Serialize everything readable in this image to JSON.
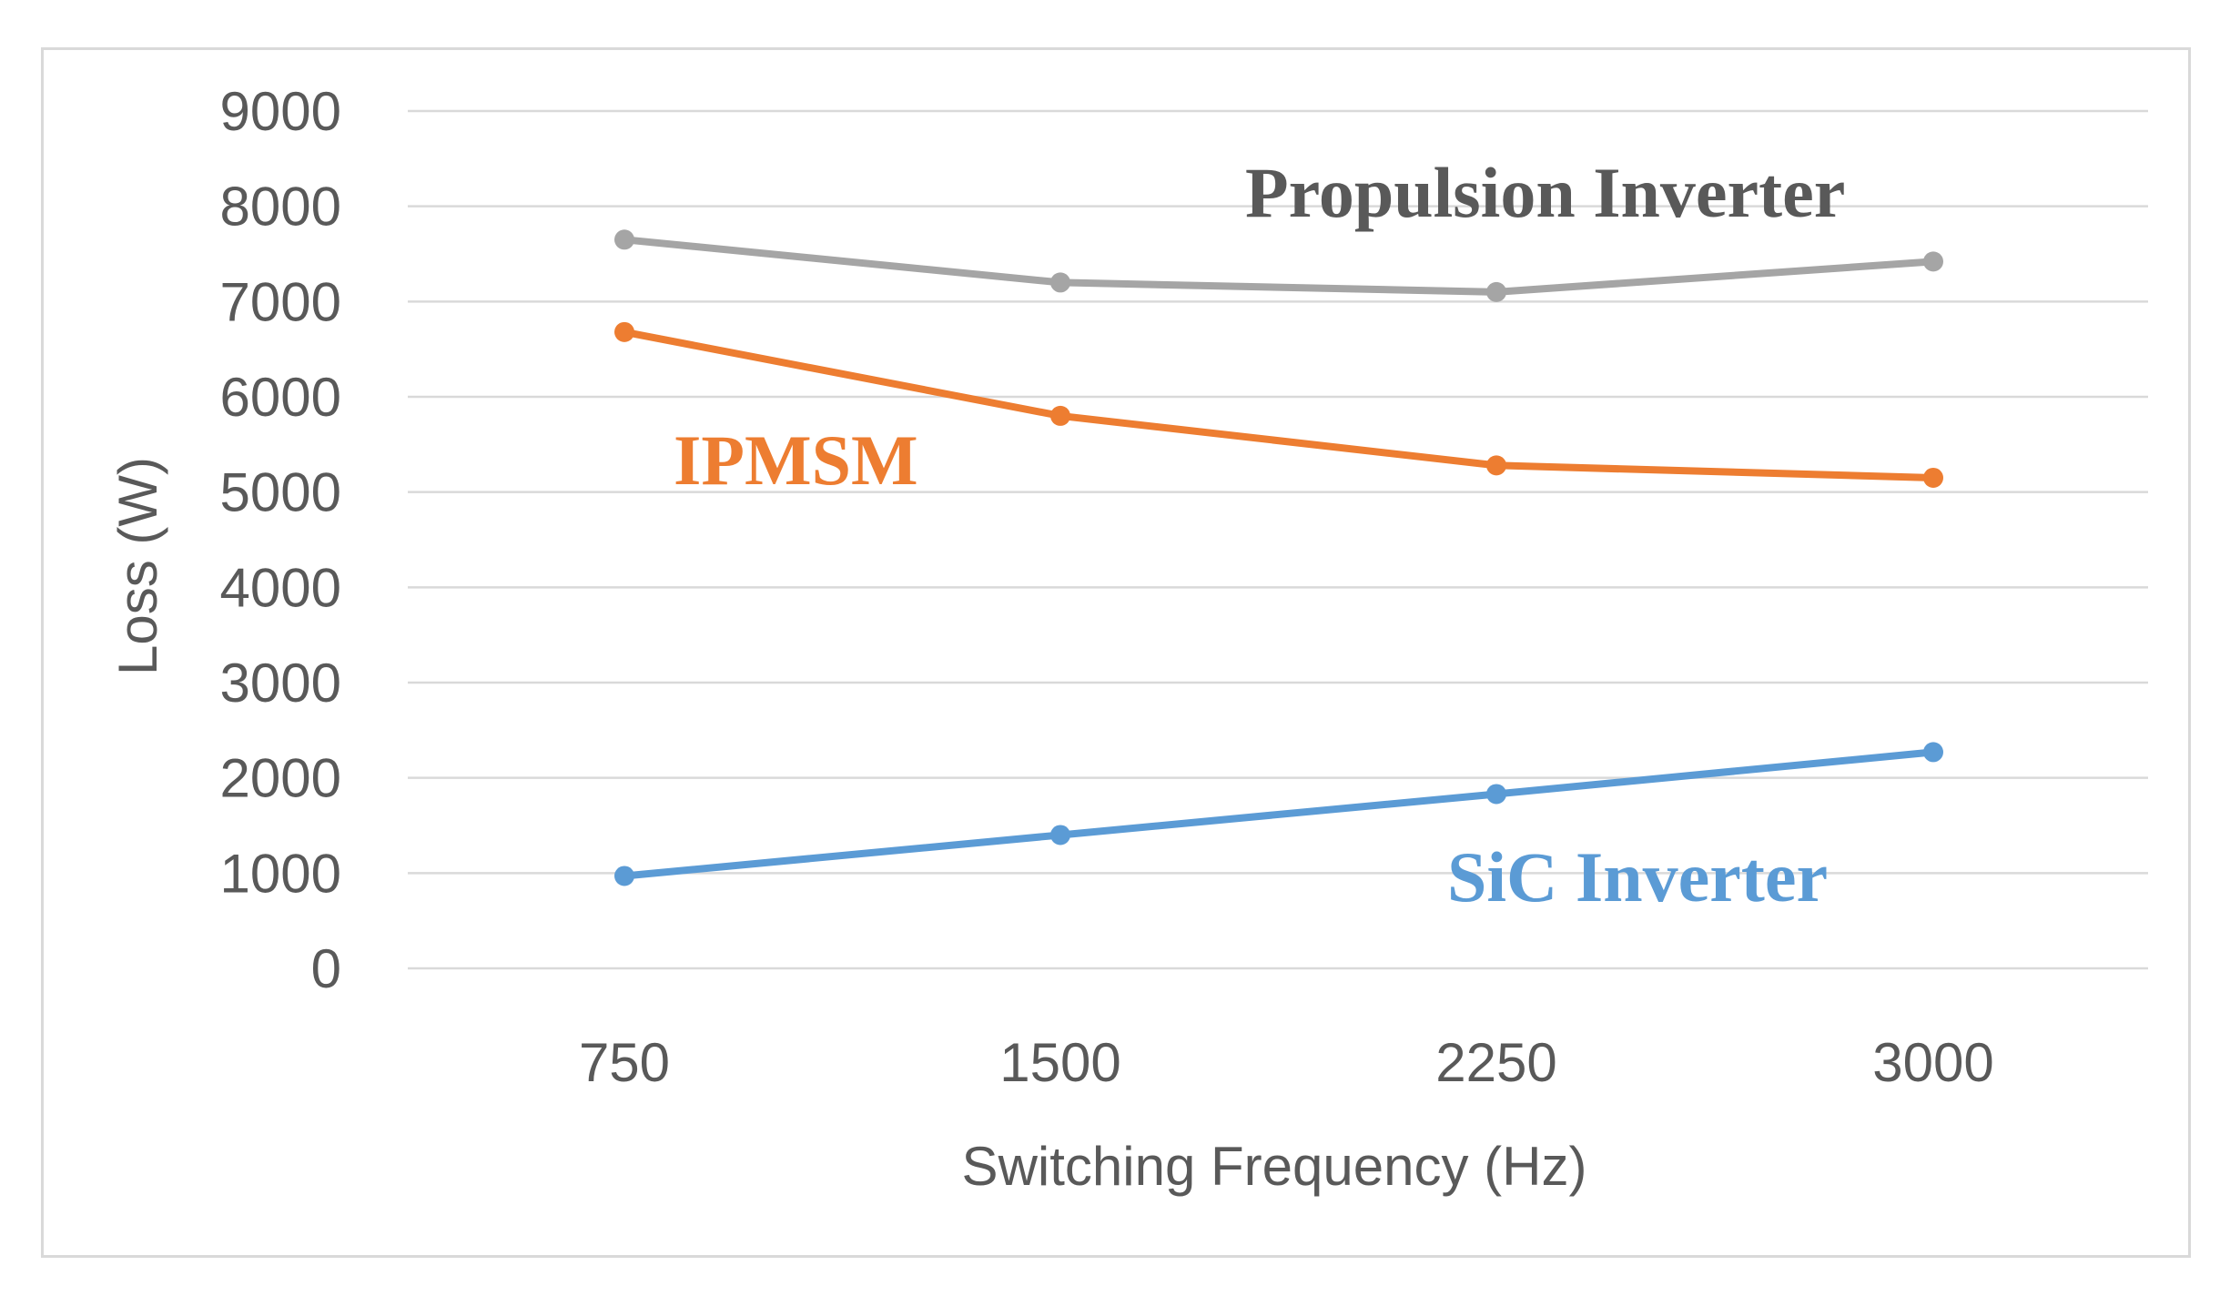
{
  "chart_data": {
    "type": "line",
    "title": "",
    "xlabel": "Switching Frequency (Hz)",
    "ylabel": "Loss (W)",
    "categories": [
      "750",
      "1500",
      "2250",
      "3000"
    ],
    "ylim": [
      0,
      9000
    ],
    "yticks": [
      0,
      1000,
      2000,
      3000,
      4000,
      5000,
      6000,
      7000,
      8000,
      9000
    ],
    "grid": true,
    "series": [
      {
        "name": "Propulsion Inverter",
        "color": "#a5a5a5",
        "values": [
          7650,
          7200,
          7100,
          7420
        ]
      },
      {
        "name": "IPMSM",
        "color": "#ed7d31",
        "values": [
          6680,
          5800,
          5280,
          5150
        ]
      },
      {
        "name": "SiC Inverter",
        "color": "#5b9bd5",
        "values": [
          970,
          1400,
          1830,
          2270
        ]
      }
    ]
  }
}
